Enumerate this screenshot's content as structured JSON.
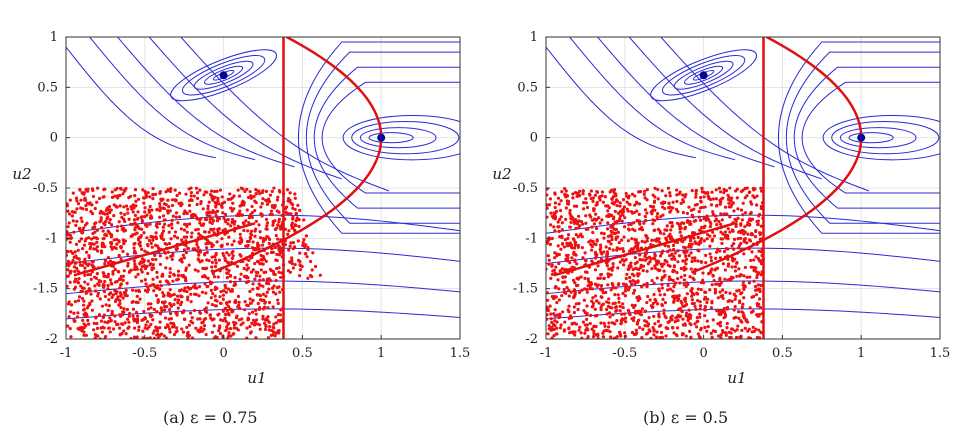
{
  "figure": {
    "panels": [
      {
        "caption": "(a)  ε = 0.75"
      },
      {
        "caption": "(b)  ε = 0.5"
      }
    ]
  },
  "colors": {
    "contour": "#2b2bd6",
    "boundary": "#e01010",
    "samples": "#ee1111",
    "equilibrium": "#000099",
    "grid": "#e3e3e3",
    "axes": "#333333"
  },
  "chart_data": [
    {
      "type": "scatter",
      "caption": "(a)  ε = 0.75",
      "epsilon": 0.75,
      "xlabel": "u1",
      "ylabel": "u2",
      "xlim": [
        -1,
        1.5
      ],
      "ylim": [
        -2,
        1
      ],
      "xticks": [
        -1,
        -0.5,
        0,
        0.5,
        1,
        1.5
      ],
      "yticks": [
        1,
        0.5,
        0,
        -0.5,
        -1,
        -1.5,
        -2
      ],
      "xtick_labels": [
        "-1",
        "-0.5",
        "0",
        "0.5",
        "1",
        "1.5"
      ],
      "ytick_labels": [
        "1",
        "0.5",
        "0",
        "-0.5",
        "-1",
        "-1.5",
        "-2"
      ],
      "grid": true,
      "equilibria": [
        [
          0,
          0.62
        ],
        [
          1,
          0
        ]
      ],
      "vertical_line_x": 0.38,
      "parabola": {
        "vertex": [
          1,
          0
        ],
        "form": "u1 = 1 - 0.6*u2^2",
        "u2_range": [
          -1.35,
          1
        ]
      },
      "sample_region": {
        "u1": [
          -1,
          0.38
        ],
        "u2": [
          -2,
          -0.5
        ]
      },
      "sample_overflow_beyond_line": true
    },
    {
      "type": "scatter",
      "caption": "(b)  ε = 0.5",
      "epsilon": 0.5,
      "xlabel": "u1",
      "ylabel": "u2",
      "xlim": [
        -1,
        1.5
      ],
      "ylim": [
        -2,
        1
      ],
      "xticks": [
        -1,
        -0.5,
        0,
        0.5,
        1,
        1.5
      ],
      "yticks": [
        1,
        0.5,
        0,
        -0.5,
        -1,
        -1.5,
        -2
      ],
      "xtick_labels": [
        "-1",
        "-0.5",
        "0",
        "0.5",
        "1",
        "1.5"
      ],
      "ytick_labels": [
        "1",
        "0.5",
        "0",
        "-0.5",
        "-1",
        "-1.5",
        "-2"
      ],
      "grid": true,
      "equilibria": [
        [
          0,
          0.62
        ],
        [
          1,
          0
        ]
      ],
      "vertical_line_x": 0.38,
      "parabola": {
        "vertex": [
          1,
          0
        ],
        "form": "u1 = 1 - 0.6*u2^2",
        "u2_range": [
          -1.35,
          1
        ]
      },
      "sample_region": {
        "u1": [
          -1,
          0.38
        ],
        "u2": [
          -2,
          -0.5
        ]
      },
      "sample_overflow_beyond_line": false
    }
  ]
}
